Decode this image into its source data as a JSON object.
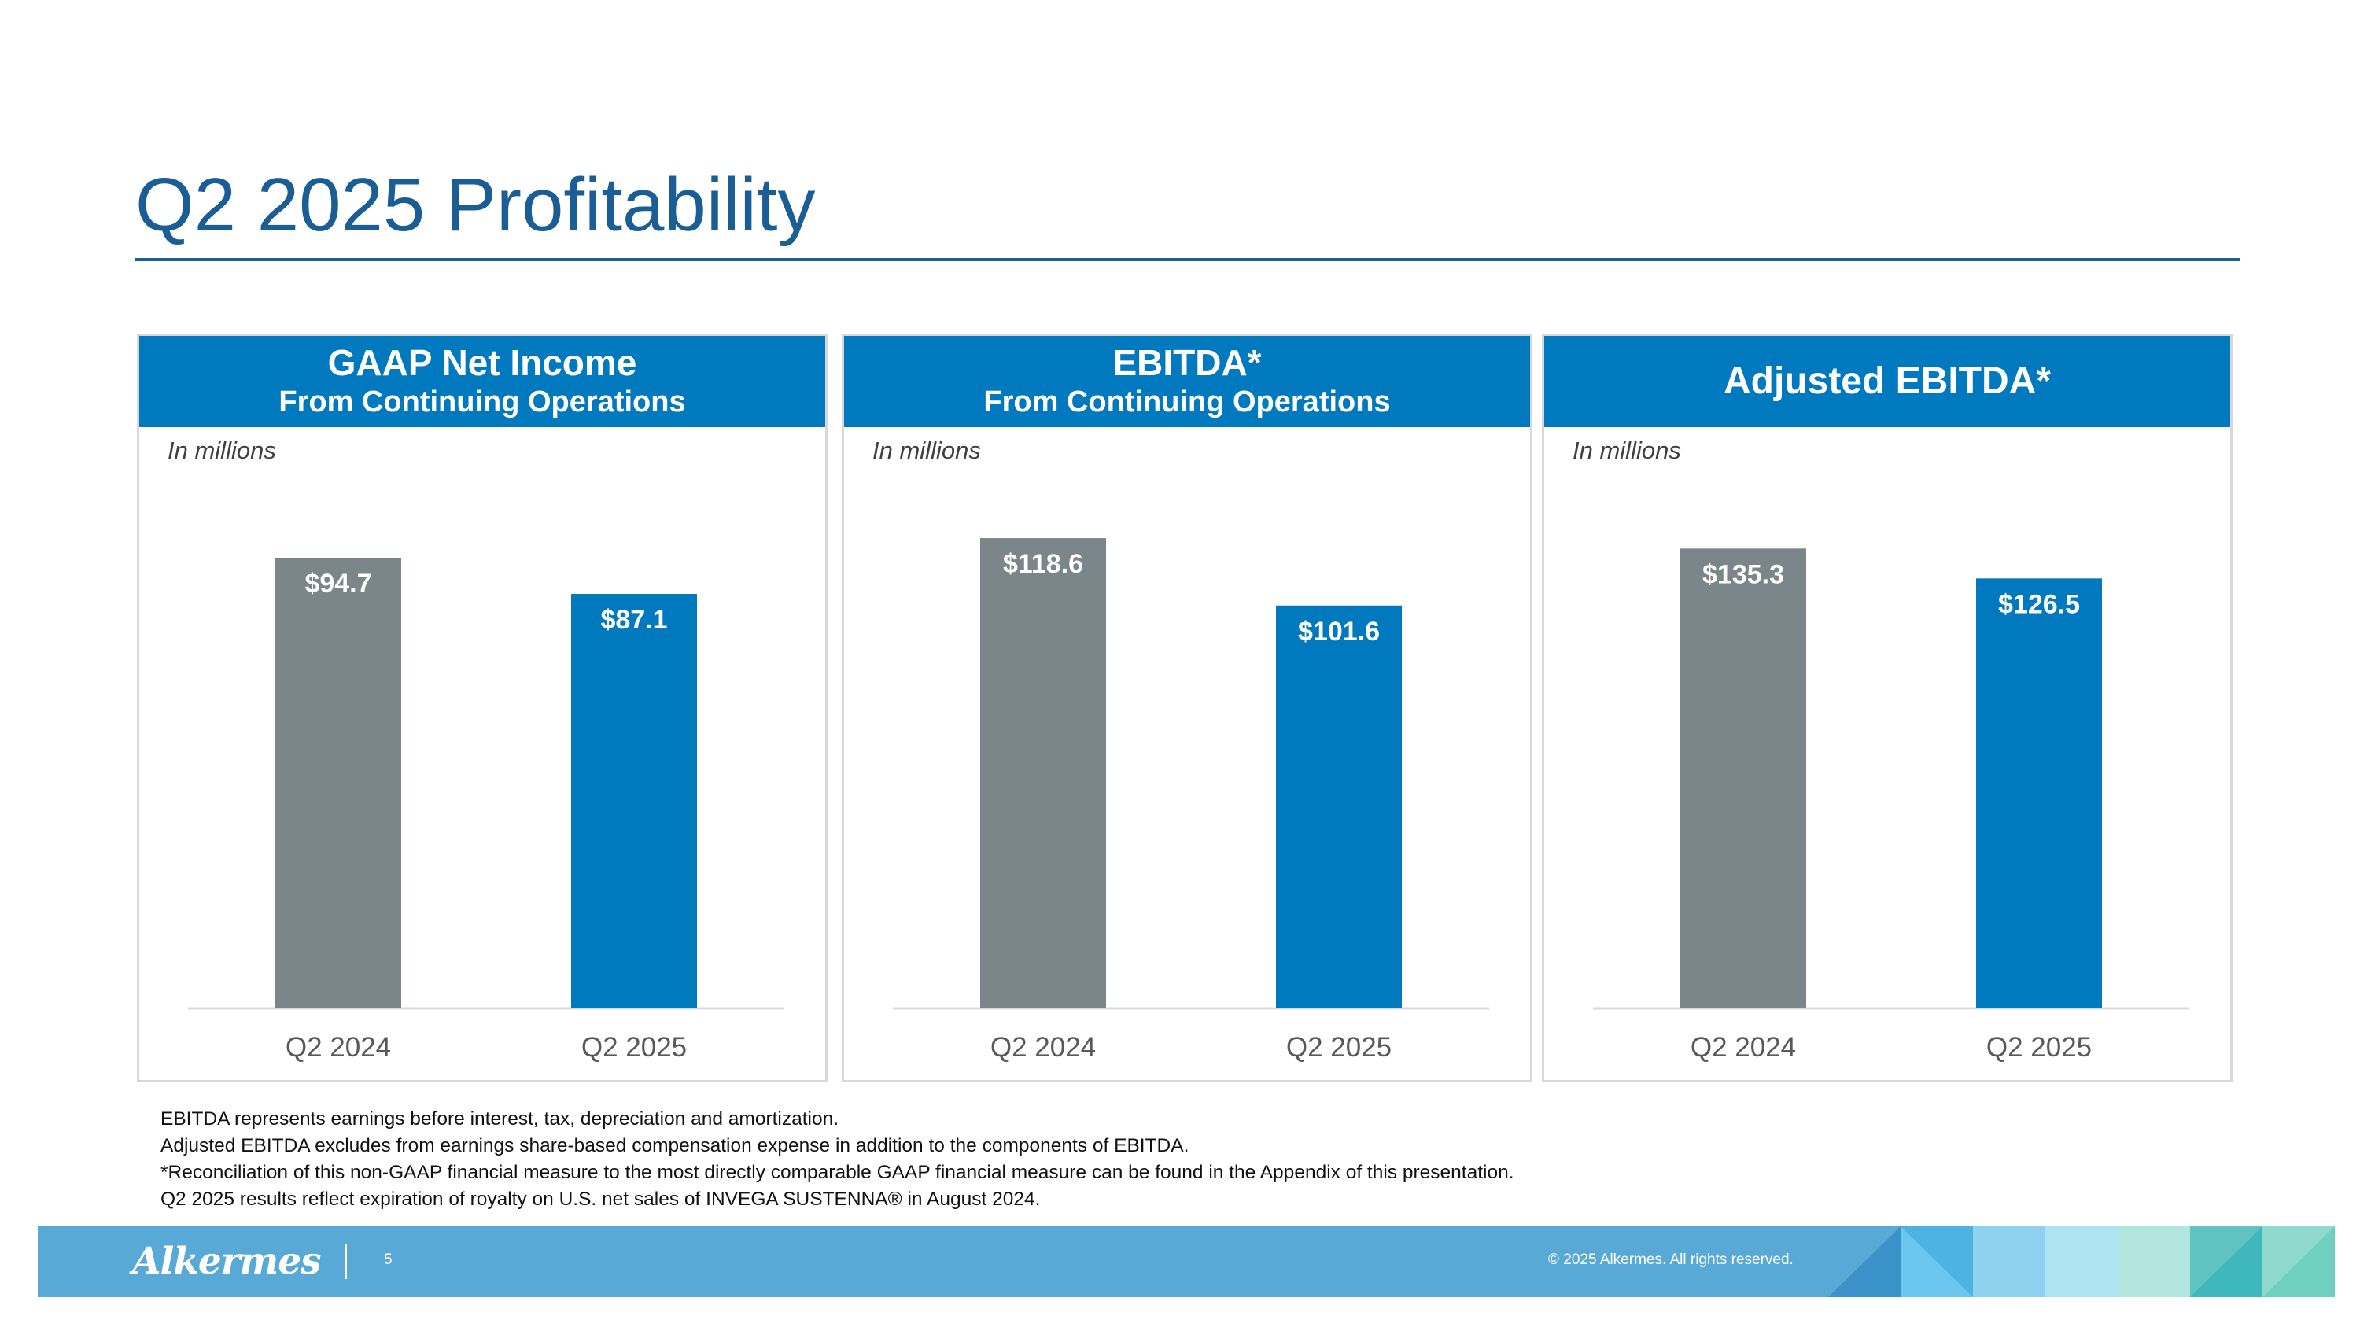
{
  "slide": {
    "title": "Q2 2025 Profitability",
    "page_number": "5",
    "copyright": "© 2025 Alkermes. All rights reserved.",
    "logo_text": "Alkermes",
    "footnotes": [
      "EBITDA represents earnings before interest, tax, depreciation and amortization.",
      "Adjusted EBITDA excludes from earnings share-based compensation expense in addition to the components of EBITDA.",
      "*Reconciliation of this non-GAAP financial measure to the most directly comparable GAAP financial measure can be found in the Appendix of this presentation.",
      "Q2 2025 results reflect expiration of royalty on U.S. net sales of INVEGA SUSTENNA® in August 2024."
    ]
  },
  "colors": {
    "title_blue": "#1b5d95",
    "header_blue": "#0079be",
    "bar_gray": "#7b868b",
    "bar_blue": "#0079be",
    "footer_blue": "#58a9d6"
  },
  "chart_data": [
    {
      "type": "bar",
      "title": "GAAP Net Income",
      "subtitle": "From Continuing Operations",
      "units_note": "In millions",
      "categories": [
        "Q2 2024",
        "Q2 2025"
      ],
      "values": [
        94.7,
        87.1
      ],
      "value_labels": [
        "$94.7",
        "$87.1"
      ],
      "ylim": [
        0,
        100
      ]
    },
    {
      "type": "bar",
      "title": "EBITDA*",
      "subtitle": "From Continuing Operations",
      "units_note": "In millions",
      "categories": [
        "Q2 2024",
        "Q2 2025"
      ],
      "values": [
        118.6,
        101.6
      ],
      "value_labels": [
        "$118.6",
        "$101.6"
      ],
      "ylim": [
        0,
        120
      ]
    },
    {
      "type": "bar",
      "title": "Adjusted EBITDA*",
      "subtitle": "",
      "units_note": "In millions",
      "categories": [
        "Q2 2024",
        "Q2 2025"
      ],
      "values": [
        135.3,
        126.5
      ],
      "value_labels": [
        "$135.3",
        "$126.5"
      ],
      "ylim": [
        0,
        140
      ]
    }
  ]
}
